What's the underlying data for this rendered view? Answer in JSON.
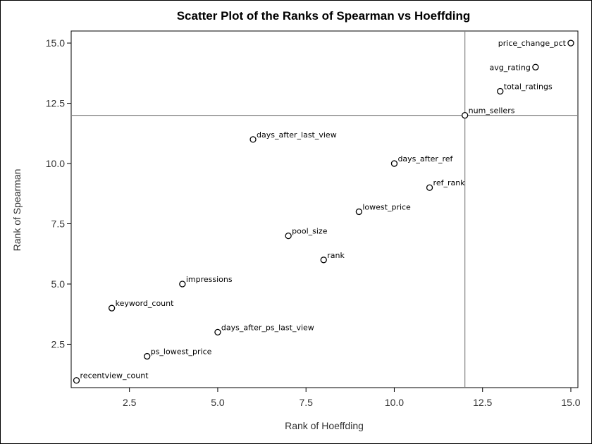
{
  "chart_data": {
    "type": "scatter",
    "title": "Scatter Plot of the Ranks of Spearman vs Hoeffding",
    "xlabel": "Rank of Hoeffding",
    "ylabel": "Rank of Spearman",
    "xlim": [
      0.85,
      15.2
    ],
    "ylim": [
      0.7,
      15.5
    ],
    "x_ticks": [
      2.5,
      5.0,
      7.5,
      10.0,
      12.5,
      15.0
    ],
    "x_tick_labels": [
      "2.5",
      "5.0",
      "7.5",
      "10.0",
      "12.5",
      "15.0"
    ],
    "y_ticks": [
      2.5,
      5.0,
      7.5,
      10.0,
      12.5,
      15.0
    ],
    "y_tick_labels": [
      "2.5",
      "5.0",
      "7.5",
      "10.0",
      "12.5",
      "15.0"
    ],
    "reference_lines": {
      "x": 12,
      "y": 12
    },
    "grid": false,
    "points": [
      {
        "label": "recentview_count",
        "x": 1,
        "y": 1
      },
      {
        "label": "keyword_count",
        "x": 2,
        "y": 4
      },
      {
        "label": "ps_lowest_price",
        "x": 3,
        "y": 2
      },
      {
        "label": "impressions",
        "x": 4,
        "y": 5
      },
      {
        "label": "days_after_ps_last_view",
        "x": 5,
        "y": 3
      },
      {
        "label": "days_after_last_view",
        "x": 6,
        "y": 11
      },
      {
        "label": "pool_size",
        "x": 7,
        "y": 7
      },
      {
        "label": "rank",
        "x": 8,
        "y": 6
      },
      {
        "label": "lowest_price",
        "x": 9,
        "y": 8
      },
      {
        "label": "days_after_ref",
        "x": 10,
        "y": 10
      },
      {
        "label": "ref_rank",
        "x": 11,
        "y": 9
      },
      {
        "label": "num_sellers",
        "x": 12,
        "y": 12
      },
      {
        "label": "total_ratings",
        "x": 13,
        "y": 13
      },
      {
        "label": "avg_rating",
        "x": 14,
        "y": 14
      },
      {
        "label": "price_change_pct",
        "x": 15,
        "y": 15
      }
    ],
    "colors": {
      "marker": "#000000",
      "reference_line": "#808080",
      "axis": "#000000"
    }
  }
}
